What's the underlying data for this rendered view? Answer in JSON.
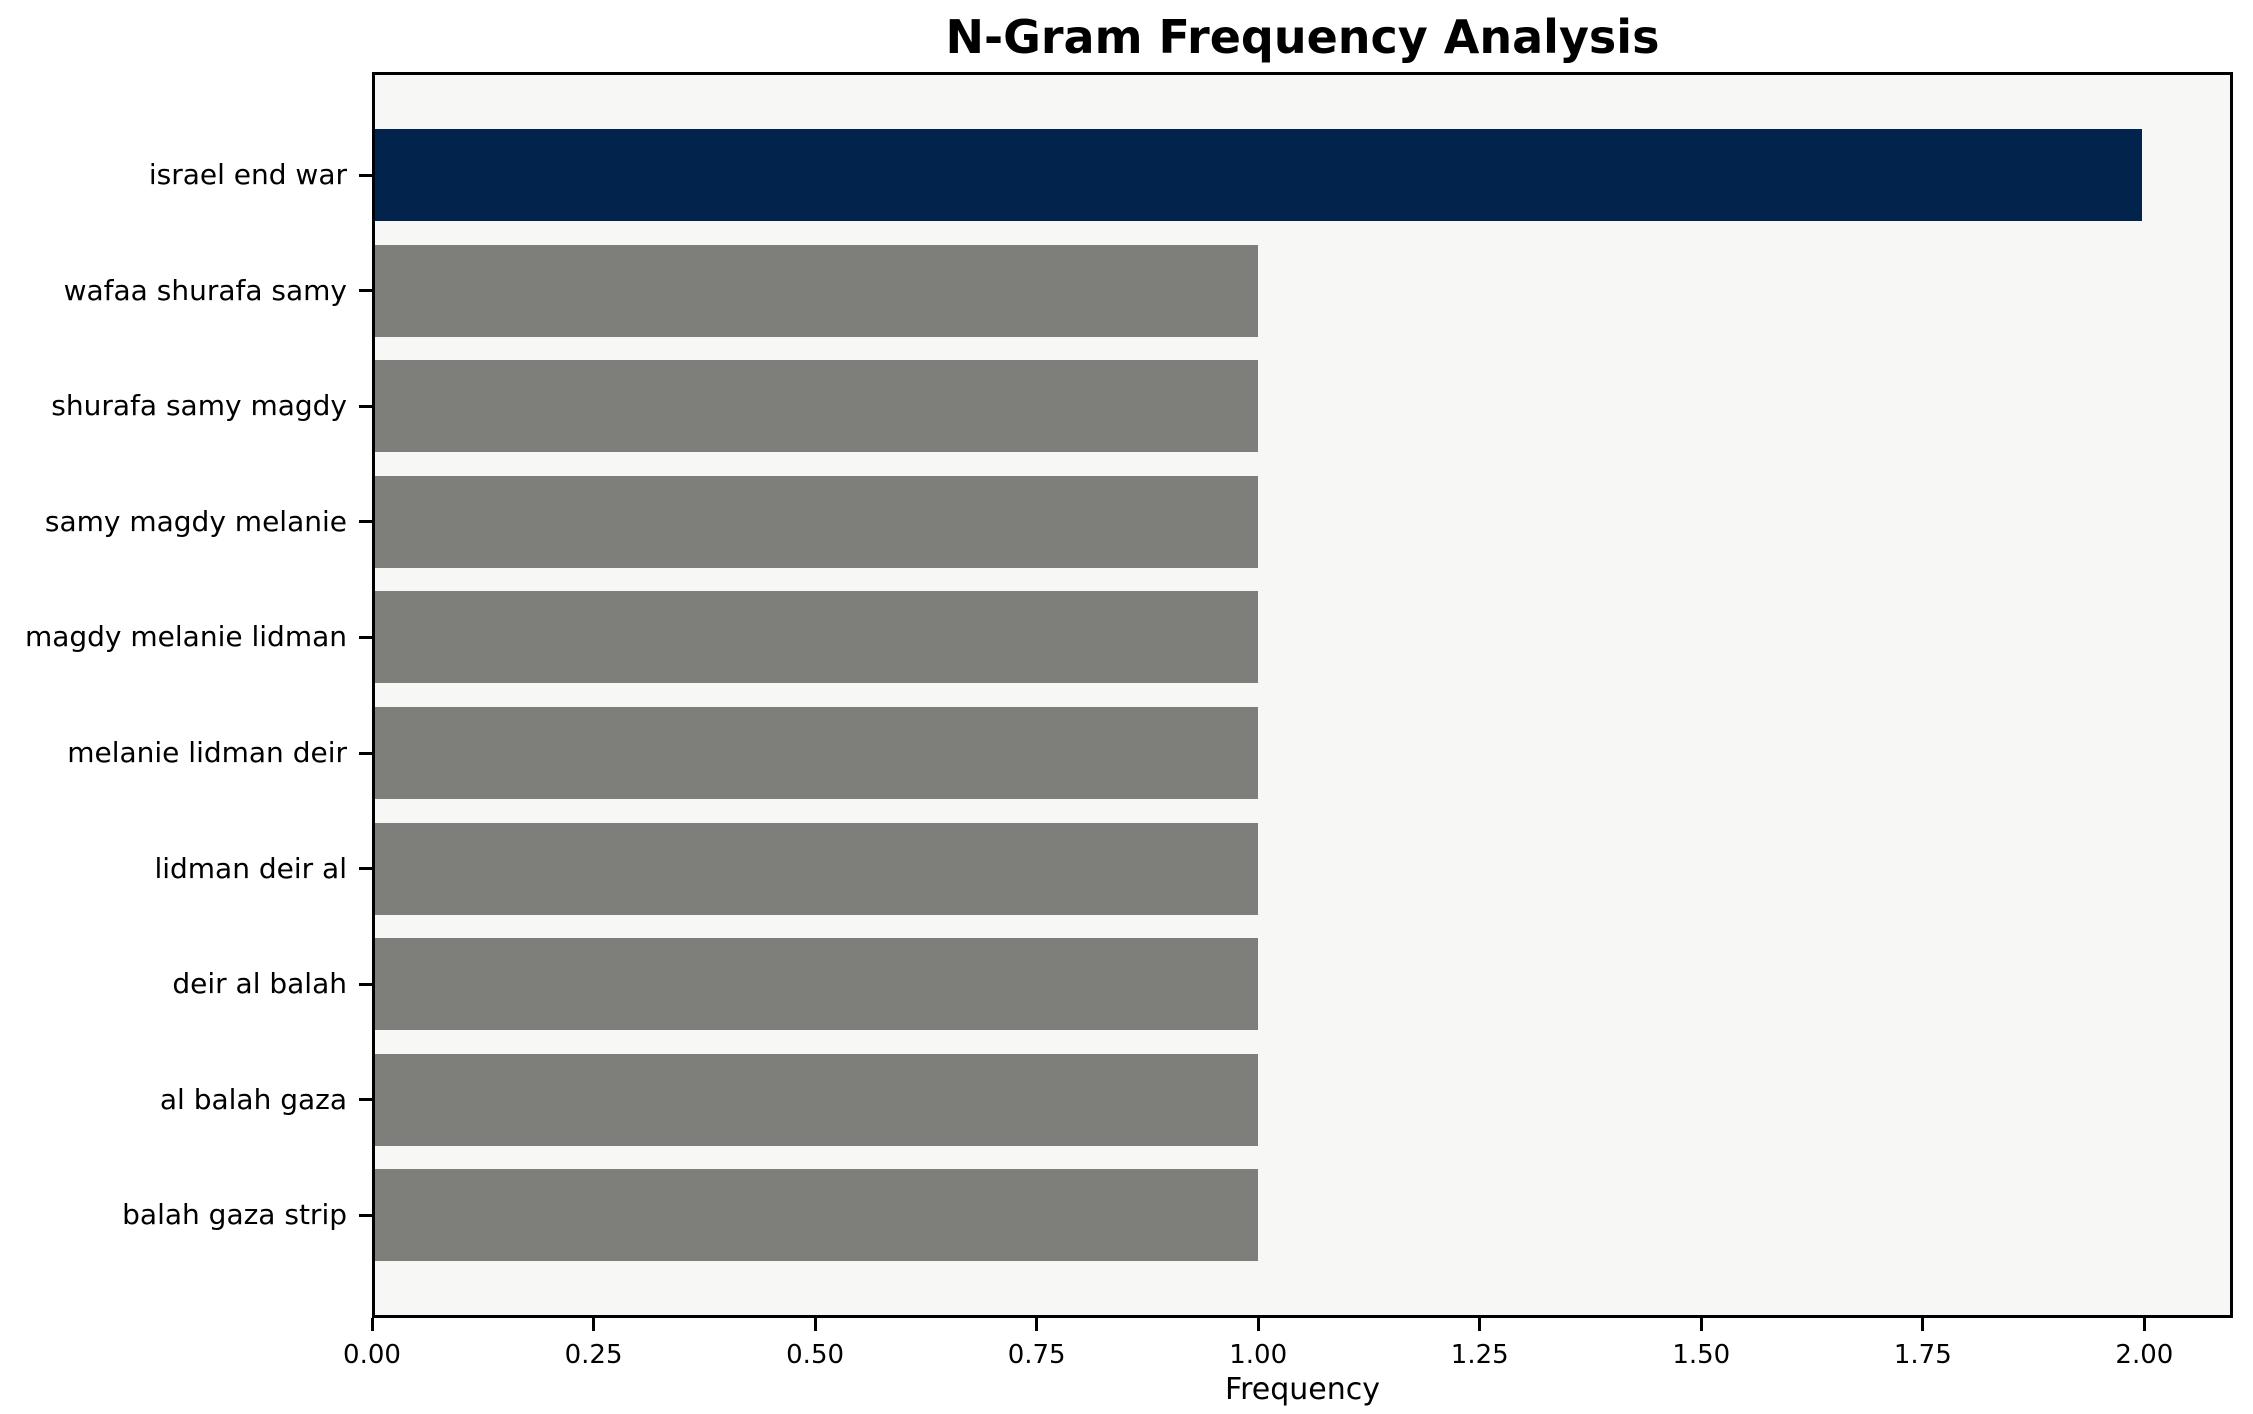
{
  "chart_data": {
    "type": "bar",
    "orientation": "horizontal",
    "title": "N-Gram Frequency Analysis",
    "xlabel": "Frequency",
    "ylabel": "",
    "categories": [
      "israel end war",
      "wafaa shurafa samy",
      "shurafa samy magdy",
      "samy magdy melanie",
      "magdy melanie lidman",
      "melanie lidman deir",
      "lidman deir al",
      "deir al balah",
      "al balah gaza",
      "balah gaza strip"
    ],
    "values": [
      2,
      1,
      1,
      1,
      1,
      1,
      1,
      1,
      1,
      1
    ],
    "xlim": [
      0,
      2.1
    ],
    "x_ticks": [
      {
        "value": 0.0,
        "label": "0.00"
      },
      {
        "value": 0.25,
        "label": "0.25"
      },
      {
        "value": 0.5,
        "label": "0.50"
      },
      {
        "value": 0.75,
        "label": "0.75"
      },
      {
        "value": 1.0,
        "label": "1.00"
      },
      {
        "value": 1.25,
        "label": "1.25"
      },
      {
        "value": 1.5,
        "label": "1.50"
      },
      {
        "value": 1.75,
        "label": "1.75"
      },
      {
        "value": 2.0,
        "label": "2.00"
      }
    ],
    "bar_colors": [
      "#02234c",
      "#7e7e7a",
      "#7e7e7a",
      "#7e7e7a",
      "#7e7e7a",
      "#7e7e7a",
      "#7e7e7a",
      "#7e7e7a",
      "#7e7e7a",
      "#7e7e7a"
    ],
    "colors": {
      "highlight_bar": "#02234c",
      "default_bar": "#7e7e7a",
      "plot_background": "#f7f7f5",
      "figure_background": "#ffffff",
      "spine": "#000000",
      "text": "#000000"
    },
    "grid": false,
    "legend": "none"
  }
}
